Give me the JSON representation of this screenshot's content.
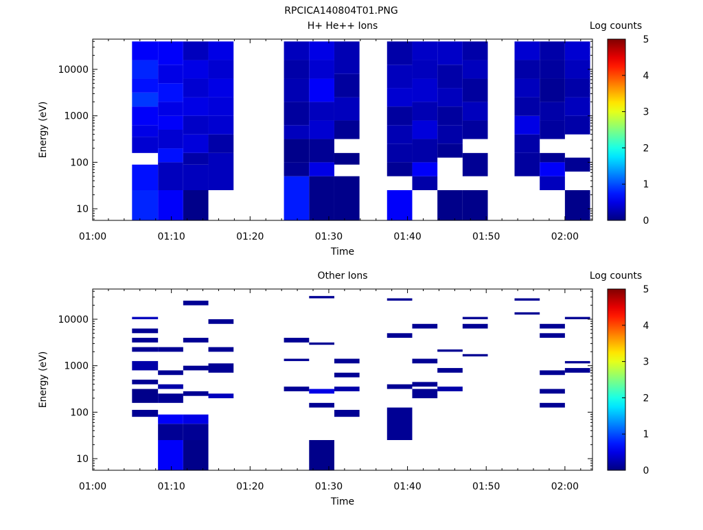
{
  "figure_title": "RPCICA140804T01.PNG",
  "colorbar_label": "Log counts",
  "colorbar_ticks": [
    "0",
    "1",
    "2",
    "3",
    "4",
    "5"
  ],
  "chart_data": [
    {
      "type": "heatmap",
      "title": "H+ He++ Ions",
      "xlabel": "Time",
      "ylabel": "Energy (eV)",
      "x_ticks": [
        "01:00",
        "01:10",
        "01:20",
        "01:30",
        "01:40",
        "01:50",
        "02:00"
      ],
      "y_ticks": [
        "10",
        "100",
        "1000",
        "10000"
      ],
      "xlim_minutes": [
        0,
        63.5
      ],
      "ylim_log10": [
        0.75,
        4.65
      ],
      "y_scale": "log",
      "colorbar_range": [
        0,
        5
      ],
      "segments": [
        {
          "t0": 5.0,
          "t1": 8.3,
          "e0": 0.75,
          "e1": 4.6,
          "cells": [
            [
              0.75,
              1.4,
              0.8
            ],
            [
              1.4,
              1.95,
              0.7
            ],
            [
              2.2,
              2.55,
              0.4
            ],
            [
              2.55,
              2.8,
              0.5
            ],
            [
              2.8,
              3.2,
              0.6
            ],
            [
              3.2,
              3.5,
              0.9
            ],
            [
              3.5,
              3.8,
              0.7
            ],
            [
              3.8,
              4.2,
              0.8
            ],
            [
              4.2,
              4.6,
              0.6
            ]
          ]
        },
        {
          "t0": 8.3,
          "t1": 11.5,
          "e0": 0.75,
          "e1": 4.6,
          "cells": [
            [
              0.75,
              1.4,
              0.6
            ],
            [
              1.4,
              2.0,
              0.3
            ],
            [
              2.0,
              2.3,
              0.7
            ],
            [
              2.3,
              2.7,
              0.4
            ],
            [
              2.7,
              3.0,
              0.6
            ],
            [
              3.0,
              3.3,
              0.5
            ],
            [
              3.3,
              3.7,
              0.7
            ],
            [
              3.7,
              4.1,
              0.5
            ],
            [
              4.1,
              4.6,
              0.6
            ]
          ]
        },
        {
          "t0": 11.5,
          "t1": 14.7,
          "e0": 0.75,
          "e1": 4.6,
          "cells": [
            [
              0.75,
              1.4,
              0.05
            ],
            [
              1.4,
              1.95,
              0.3
            ],
            [
              1.95,
              2.2,
              0.2
            ],
            [
              2.2,
              2.6,
              0.45
            ],
            [
              2.6,
              3.0,
              0.35
            ],
            [
              3.0,
              3.4,
              0.5
            ],
            [
              3.4,
              3.8,
              0.4
            ],
            [
              3.8,
              4.2,
              0.5
            ],
            [
              4.2,
              4.6,
              0.3
            ]
          ]
        },
        {
          "t0": 14.7,
          "t1": 17.9,
          "e0": 1.4,
          "e1": 4.6,
          "cells": [
            [
              1.4,
              2.2,
              0.3
            ],
            [
              2.2,
              2.6,
              0.2
            ],
            [
              2.6,
              3.0,
              0.4
            ],
            [
              3.0,
              3.4,
              0.45
            ],
            [
              3.4,
              3.8,
              0.5
            ],
            [
              3.8,
              4.2,
              0.4
            ],
            [
              4.2,
              4.6,
              0.5
            ]
          ]
        },
        {
          "t0": 24.3,
          "t1": 27.5,
          "e0": 0.75,
          "e1": 4.6,
          "cells": [
            [
              0.75,
              1.7,
              0.75
            ],
            [
              1.7,
              2.0,
              0.1
            ],
            [
              2.0,
              2.5,
              0.05
            ],
            [
              2.5,
              2.8,
              0.3
            ],
            [
              2.8,
              3.3,
              0.15
            ],
            [
              3.3,
              3.8,
              0.25
            ],
            [
              3.8,
              4.2,
              0.2
            ],
            [
              4.2,
              4.6,
              0.3
            ]
          ]
        },
        {
          "t0": 27.5,
          "t1": 30.7,
          "e0": 0.75,
          "e1": 4.6,
          "cells": [
            [
              0.75,
              1.7,
              0.05
            ],
            [
              1.7,
              2.0,
              0.5
            ],
            [
              2.0,
              2.5,
              0.1
            ],
            [
              2.5,
              2.9,
              0.4
            ],
            [
              2.9,
              3.3,
              0.3
            ],
            [
              3.3,
              3.8,
              0.6
            ],
            [
              3.8,
              4.2,
              0.4
            ],
            [
              4.2,
              4.6,
              0.5
            ]
          ]
        },
        {
          "t0": 30.7,
          "t1": 33.9,
          "e0": 0.75,
          "e1": 4.6,
          "cells": [
            [
              0.75,
              1.7,
              0.05
            ],
            [
              1.95,
              2.2,
              0.05
            ],
            [
              2.5,
              2.9,
              0.1
            ],
            [
              2.9,
              3.4,
              0.3
            ],
            [
              3.4,
              3.9,
              0.15
            ],
            [
              3.9,
              4.6,
              0.25
            ]
          ]
        },
        {
          "t0": 37.4,
          "t1": 40.6,
          "e0": 0.75,
          "e1": 4.6,
          "cells": [
            [
              0.75,
              1.4,
              0.6
            ],
            [
              1.7,
              2.0,
              0.1
            ],
            [
              2.0,
              2.4,
              0.2
            ],
            [
              2.4,
              2.8,
              0.25
            ],
            [
              2.8,
              3.2,
              0.15
            ],
            [
              3.2,
              3.6,
              0.4
            ],
            [
              3.6,
              4.1,
              0.3
            ],
            [
              4.1,
              4.6,
              0.2
            ]
          ]
        },
        {
          "t0": 40.6,
          "t1": 43.8,
          "e0": 1.4,
          "e1": 4.6,
          "cells": [
            [
              1.4,
              1.7,
              0.2
            ],
            [
              1.7,
              2.0,
              0.6
            ],
            [
              2.0,
              2.5,
              0.2
            ],
            [
              2.5,
              2.9,
              0.45
            ],
            [
              2.9,
              3.3,
              0.25
            ],
            [
              3.3,
              3.8,
              0.4
            ],
            [
              3.8,
              4.2,
              0.3
            ],
            [
              4.2,
              4.6,
              0.35
            ]
          ]
        },
        {
          "t0": 43.8,
          "t1": 47.0,
          "e0": 0.75,
          "e1": 4.6,
          "cells": [
            [
              0.75,
              1.4,
              0.05
            ],
            [
              2.1,
              2.4,
              0.1
            ],
            [
              2.4,
              2.8,
              0.2
            ],
            [
              2.8,
              3.2,
              0.15
            ],
            [
              3.2,
              3.6,
              0.3
            ],
            [
              3.6,
              4.1,
              0.2
            ],
            [
              4.1,
              4.6,
              0.35
            ]
          ]
        },
        {
          "t0": 47.0,
          "t1": 50.2,
          "e0": 0.75,
          "e1": 4.6,
          "cells": [
            [
              0.75,
              1.4,
              0.05
            ],
            [
              1.7,
              2.2,
              0.1
            ],
            [
              2.5,
              2.9,
              0.15
            ],
            [
              2.9,
              3.3,
              0.3
            ],
            [
              3.3,
              3.8,
              0.15
            ],
            [
              3.8,
              4.2,
              0.3
            ],
            [
              4.2,
              4.6,
              0.2
            ]
          ]
        },
        {
          "t0": 53.6,
          "t1": 56.8,
          "e0": 1.7,
          "e1": 4.6,
          "cells": [
            [
              1.7,
              2.2,
              0.15
            ],
            [
              2.2,
              2.6,
              0.2
            ],
            [
              2.6,
              3.0,
              0.5
            ],
            [
              3.0,
              3.4,
              0.2
            ],
            [
              3.4,
              3.8,
              0.3
            ],
            [
              3.8,
              4.2,
              0.2
            ],
            [
              4.2,
              4.6,
              0.4
            ]
          ]
        },
        {
          "t0": 56.8,
          "t1": 60.0,
          "e0": 1.4,
          "e1": 4.6,
          "cells": [
            [
              1.4,
              1.7,
              0.3
            ],
            [
              1.7,
              2.0,
              0.6
            ],
            [
              2.0,
              2.2,
              0.1
            ],
            [
              2.5,
              2.9,
              0.15
            ],
            [
              2.9,
              3.3,
              0.2
            ],
            [
              3.3,
              3.8,
              0.1
            ],
            [
              3.8,
              4.2,
              0.15
            ],
            [
              4.2,
              4.6,
              0.2
            ]
          ]
        },
        {
          "t0": 60.0,
          "t1": 63.2,
          "e0": 0.75,
          "e1": 4.6,
          "cells": [
            [
              0.75,
              1.4,
              0.05
            ],
            [
              1.8,
              2.1,
              0.1
            ],
            [
              2.6,
              3.0,
              0.2
            ],
            [
              3.0,
              3.4,
              0.3
            ],
            [
              3.4,
              3.8,
              0.2
            ],
            [
              3.8,
              4.2,
              0.3
            ],
            [
              4.2,
              4.6,
              0.4
            ]
          ]
        }
      ]
    },
    {
      "type": "heatmap",
      "title": "Other Ions",
      "xlabel": "Time",
      "ylabel": "Energy (eV)",
      "x_ticks": [
        "01:00",
        "01:10",
        "01:20",
        "01:30",
        "01:40",
        "01:50",
        "02:00"
      ],
      "y_ticks": [
        "10",
        "100",
        "1000",
        "10000"
      ],
      "xlim_minutes": [
        0,
        63.5
      ],
      "ylim_log10": [
        0.75,
        4.65
      ],
      "y_scale": "log",
      "colorbar_range": [
        0,
        5
      ],
      "segments": [
        {
          "t0": 5.0,
          "t1": 8.3,
          "e0": 1.9,
          "e1": 4.6,
          "cells": [
            [
              1.9,
              2.05,
              0.1
            ],
            [
              2.2,
              2.5,
              0.05
            ],
            [
              2.6,
              2.7,
              0.1
            ],
            [
              2.9,
              3.1,
              0.2
            ],
            [
              3.3,
              3.4,
              0.1
            ],
            [
              3.5,
              3.6,
              0.1
            ],
            [
              3.7,
              3.8,
              0.1
            ],
            [
              4.0,
              4.05,
              0.3
            ]
          ]
        },
        {
          "t0": 8.3,
          "t1": 11.5,
          "e0": 0.75,
          "e1": 4.6,
          "cells": [
            [
              0.75,
              1.4,
              0.6
            ],
            [
              1.4,
              1.75,
              0.1
            ],
            [
              1.75,
              1.95,
              0.6
            ],
            [
              2.2,
              2.4,
              0.1
            ],
            [
              2.5,
              2.6,
              0.2
            ],
            [
              2.8,
              2.9,
              0.1
            ],
            [
              3.3,
              3.4,
              0.1
            ]
          ]
        },
        {
          "t0": 11.5,
          "t1": 14.7,
          "e0": 0.75,
          "e1": 4.6,
          "cells": [
            [
              0.75,
              1.4,
              0.05
            ],
            [
              1.4,
              1.75,
              0.1
            ],
            [
              1.75,
              1.95,
              0.5
            ],
            [
              2.35,
              2.45,
              0.1
            ],
            [
              2.9,
              3.0,
              0.1
            ],
            [
              3.5,
              3.6,
              0.1
            ],
            [
              4.3,
              4.4,
              0.1
            ]
          ]
        },
        {
          "t0": 14.7,
          "t1": 17.9,
          "e0": 2.3,
          "e1": 4.6,
          "cells": [
            [
              2.3,
              2.4,
              0.3
            ],
            [
              2.85,
              3.05,
              0.1
            ],
            [
              3.3,
              3.4,
              0.1
            ],
            [
              3.9,
              4.0,
              0.1
            ]
          ]
        },
        {
          "t0": 24.3,
          "t1": 27.5,
          "e0": 2.3,
          "e1": 4.6,
          "cells": [
            [
              2.45,
              2.55,
              0.1
            ],
            [
              3.1,
              3.15,
              0.1
            ],
            [
              3.5,
              3.6,
              0.1
            ]
          ]
        },
        {
          "t0": 27.5,
          "t1": 30.7,
          "e0": 0.75,
          "e1": 4.6,
          "cells": [
            [
              0.75,
              1.4,
              0.05
            ],
            [
              2.1,
              2.2,
              0.1
            ],
            [
              2.4,
              2.5,
              0.5
            ],
            [
              3.45,
              3.5,
              0.1
            ],
            [
              4.45,
              4.5,
              0.1
            ]
          ]
        },
        {
          "t0": 30.7,
          "t1": 33.9,
          "e0": 1.9,
          "e1": 4.6,
          "cells": [
            [
              1.9,
              2.05,
              0.1
            ],
            [
              2.45,
              2.55,
              0.2
            ],
            [
              2.75,
              2.85,
              0.1
            ],
            [
              3.05,
              3.15,
              0.1
            ]
          ]
        },
        {
          "t0": 37.4,
          "t1": 40.6,
          "e0": 1.4,
          "e1": 4.6,
          "cells": [
            [
              1.4,
              2.1,
              0.1
            ],
            [
              2.5,
              2.6,
              0.1
            ],
            [
              3.6,
              3.7,
              0.1
            ],
            [
              4.4,
              4.45,
              0.1
            ]
          ]
        },
        {
          "t0": 40.6,
          "t1": 43.8,
          "e0": 2.3,
          "e1": 4.6,
          "cells": [
            [
              2.3,
              2.5,
              0.1
            ],
            [
              2.55,
              2.65,
              0.1
            ],
            [
              3.05,
              3.15,
              0.1
            ],
            [
              3.8,
              3.9,
              0.1
            ]
          ]
        },
        {
          "t0": 43.8,
          "t1": 47.0,
          "e0": 2.4,
          "e1": 4.6,
          "cells": [
            [
              2.45,
              2.55,
              0.2
            ],
            [
              2.85,
              2.95,
              0.1
            ],
            [
              3.3,
              3.35,
              0.1
            ]
          ]
        },
        {
          "t0": 47.0,
          "t1": 50.2,
          "e0": 3.3,
          "e1": 4.6,
          "cells": [
            [
              3.2,
              3.25,
              0.1
            ],
            [
              3.8,
              3.9,
              0.1
            ],
            [
              4.0,
              4.05,
              0.1
            ]
          ]
        },
        {
          "t0": 53.6,
          "t1": 56.8,
          "e0": 4.0,
          "e1": 4.6,
          "cells": [
            [
              4.1,
              4.15,
              0.1
            ],
            [
              4.4,
              4.45,
              0.1
            ]
          ]
        },
        {
          "t0": 56.8,
          "t1": 60.0,
          "e0": 2.1,
          "e1": 4.6,
          "cells": [
            [
              2.1,
              2.2,
              0.1
            ],
            [
              2.4,
              2.5,
              0.1
            ],
            [
              2.8,
              2.9,
              0.1
            ],
            [
              3.6,
              3.7,
              0.1
            ],
            [
              3.8,
              3.9,
              0.1
            ]
          ]
        },
        {
          "t0": 60.0,
          "t1": 63.2,
          "e0": 2.8,
          "e1": 4.6,
          "cells": [
            [
              2.85,
              2.95,
              0.1
            ],
            [
              3.05,
              3.1,
              0.1
            ],
            [
              4.0,
              4.05,
              0.1
            ]
          ]
        }
      ]
    }
  ]
}
